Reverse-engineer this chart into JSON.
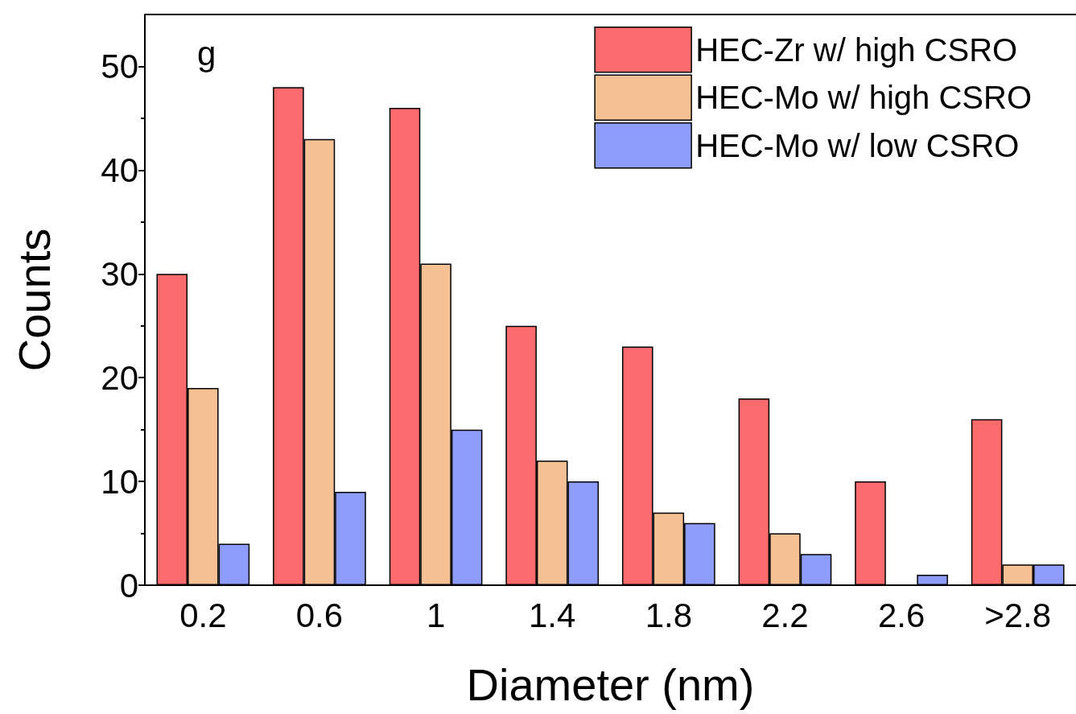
{
  "chart_data": {
    "type": "bar",
    "xlabel": "Diameter (nm)",
    "ylabel": "Counts",
    "annotations": [
      "g"
    ],
    "categories": [
      "0.2",
      "0.6",
      "1",
      "1.4",
      "1.8",
      "2.2",
      "2.6",
      ">2.8"
    ],
    "series": [
      {
        "name": "HEC-Zr w/ high CSRO",
        "color": "#fa6b6b",
        "values": [
          30,
          48,
          46,
          25,
          23,
          18,
          10,
          16
        ]
      },
      {
        "name": "HEC-Mo w/ high CSRO",
        "color": "#f6c095",
        "values": [
          19,
          43,
          31,
          12,
          7,
          5,
          null,
          2
        ]
      },
      {
        "name": "HEC-Mo w/ low CSRO",
        "color": "#8e9dfb",
        "values": [
          4,
          9,
          15,
          10,
          6,
          3,
          1,
          2
        ]
      }
    ],
    "ylim": [
      0,
      55
    ],
    "yticks": [
      0,
      10,
      20,
      30,
      40,
      50
    ],
    "grid": false,
    "legend": "top right"
  }
}
